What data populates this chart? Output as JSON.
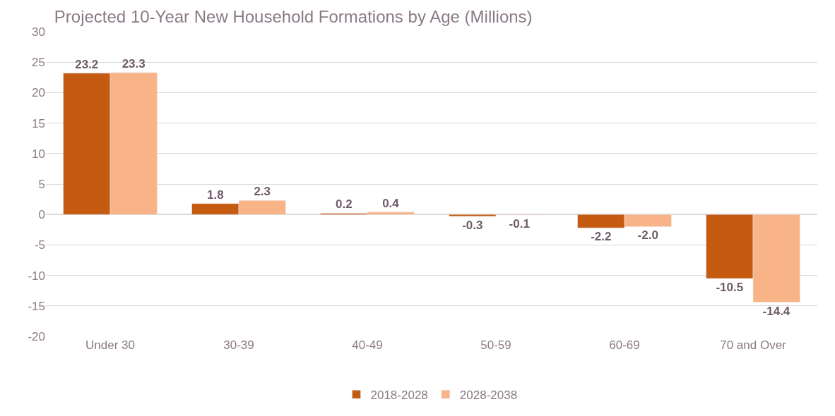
{
  "chart_data": {
    "type": "bar",
    "title": "Projected 10-Year New Household Formations by Age (Millions)",
    "categories": [
      "Under 30",
      "30-39",
      "40-49",
      "50-59",
      "60-69",
      "70 and Over"
    ],
    "series": [
      {
        "name": "2018-2028",
        "color": "#c55a11",
        "values": [
          23.2,
          1.8,
          0.2,
          -0.3,
          -2.2,
          -10.5
        ],
        "value_labels": [
          "23.2",
          "1.8",
          "0.2",
          "-0.3",
          "-2.2",
          "-10.5"
        ]
      },
      {
        "name": "2028-2038",
        "color": "#f8b487",
        "values": [
          23.3,
          2.3,
          0.4,
          -0.1,
          -2.0,
          -14.4
        ],
        "value_labels": [
          "23.3",
          "2.3",
          "0.4",
          "-0.1",
          "-2.0",
          "-14.4"
        ]
      }
    ],
    "ylim": [
      -20,
      30
    ],
    "yticks": [
      -20,
      -15,
      -10,
      -5,
      0,
      5,
      10,
      15,
      20,
      25,
      30
    ],
    "grid": "y",
    "legend": "bottom"
  }
}
